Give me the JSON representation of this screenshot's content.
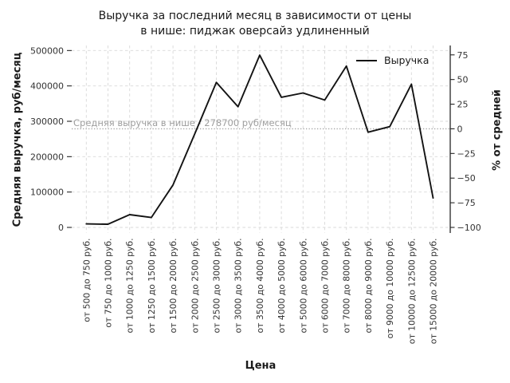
{
  "chart_data": {
    "type": "line",
    "title_line1": "Выручка за последний месяц в зависимости от цены",
    "title_line2": "в нише: пиджак оверсайз удлиненный",
    "xlabel": "Цена",
    "ylabel_left": "Средняя выручка, руб/месяц",
    "ylabel_right": "% от средней",
    "legend": {
      "label": "Выручка"
    },
    "categories": [
      "от 500 до 750 руб.",
      "от 750 до 1000 руб.",
      "от 1000 до 1250 руб.",
      "от 1250 до 1500 руб.",
      "от 1500 до 2000 руб.",
      "от 2000 до 2500 руб.",
      "от 2500 до 3000 руб.",
      "от 3000 до 3500 руб.",
      "от 3500 до 4000 руб.",
      "от 4000 до 5000 руб.",
      "от 5000 до 6000 руб.",
      "от 6000 до 7000 руб.",
      "от 7000 до 8000 руб.",
      "от 8000 до 9000 руб.",
      "от 9000 до 10000 руб.",
      "от 10000 до 12500 руб.",
      "от 15000 до 20000 руб."
    ],
    "series": [
      {
        "name": "Выручка",
        "values": [
          10000,
          9000,
          36000,
          28000,
          120000,
          264000,
          410000,
          341000,
          487000,
          368000,
          380000,
          360000,
          456000,
          269000,
          285000,
          405000,
          83000
        ]
      }
    ],
    "ylim_left": [
      0,
      500000
    ],
    "left_ticks_values": [
      0,
      100000,
      200000,
      300000,
      400000,
      500000
    ],
    "left_ticks_labels": [
      "0",
      "100000",
      "200000",
      "300000",
      "400000",
      "500000"
    ],
    "right_ticks_values": [
      75,
      50,
      25,
      0,
      -25,
      -50,
      -75,
      -100
    ],
    "right_ticks_labels": [
      "75",
      "50",
      "25",
      "0",
      "−25",
      "−50",
      "−75",
      "−100"
    ],
    "average_line": {
      "value": 278700,
      "label": "Средняя выручка в нише - 278700 руб/месяц"
    },
    "grid": true,
    "legend_position": "upper-right",
    "colors": {
      "line": "#131313",
      "grid": "#d8d8d8",
      "average_line": "#a3a3a3",
      "annotation_text": "#9e9e9e",
      "tick_text": "#333333",
      "spine": "#262626"
    }
  }
}
